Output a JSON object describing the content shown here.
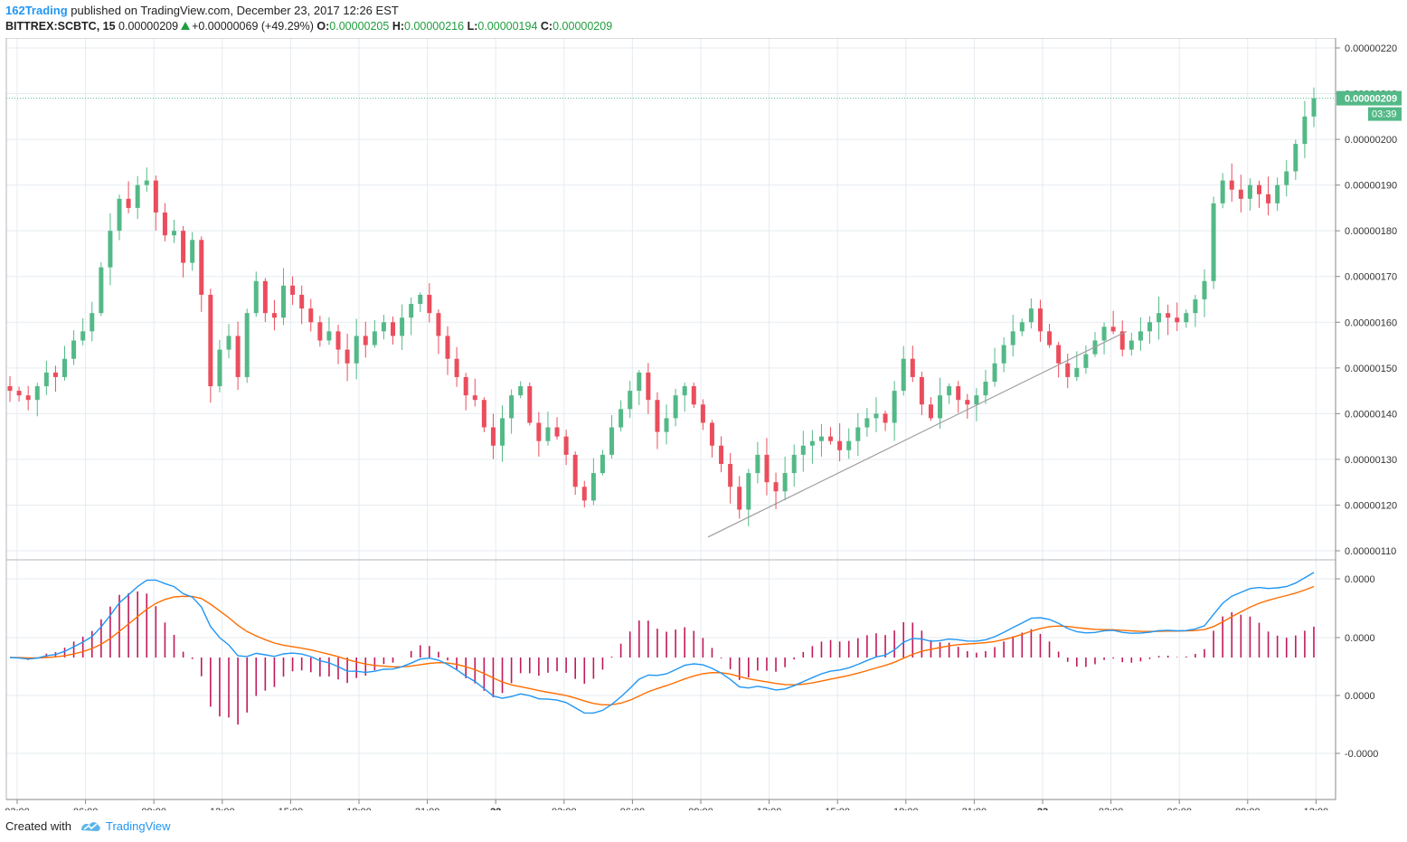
{
  "header": {
    "publisher": "162Trading",
    "published_text": "published on TradingView.com, December 23, 2017 12:26 EST",
    "symbol": "BITTREX:SCBTC, 15",
    "last": "0.00000209",
    "change": "+0.00000069 (+49.29%)",
    "o_label": "O:",
    "o_value": "0.00000205",
    "h_label": "H:",
    "h_value": "0.00000216",
    "l_label": "L:",
    "l_value": "0.00000194",
    "c_label": "C:",
    "c_value": "0.00000209"
  },
  "footer": {
    "created_with": "Created with",
    "brand": "TradingView"
  },
  "colors": {
    "up": "#53b987",
    "down": "#eb4d5c",
    "macd": "#2196f3",
    "signal": "#ff6d00",
    "histogram": "#c2185b",
    "grid": "#e6ebf0",
    "axis_text": "#333333",
    "price_label_bg": "#53b987"
  },
  "chart_data": [
    {
      "type": "candlestick",
      "symbol": "BITTREX:SCBTC",
      "interval": "15",
      "y_ticks": [
        "0.00000110",
        "0.00000120",
        "0.00000130",
        "0.00000140",
        "0.00000150",
        "0.00000160",
        "0.00000170",
        "0.00000180",
        "0.00000190",
        "0.00000200",
        "0.00000210",
        "0.00000220"
      ],
      "ylim": [
        1.1e-06,
        2.2e-06
      ],
      "x_ticks": [
        "03:00",
        "06:00",
        "09:00",
        "12:00",
        "15:00",
        "18:00",
        "21:00",
        "22",
        "03:00",
        "06:00",
        "09:00",
        "12:00",
        "15:00",
        "18:00",
        "21:00",
        "23",
        "03:00",
        "06:00",
        "09:00",
        "12:00"
      ],
      "bold_x_ticks": [
        "22",
        "23"
      ],
      "current_price_label": "0.00000209",
      "countdown_label": "03:39",
      "trendline": {
        "from": [
          "21 09:30",
          1.13e-06
        ],
        "to": [
          "23 05:00",
          1.58e-06
        ]
      },
      "close_series": [
        1.45e-06,
        1.44e-06,
        1.43e-06,
        1.46e-06,
        1.49e-06,
        1.48e-06,
        1.52e-06,
        1.56e-06,
        1.58e-06,
        1.62e-06,
        1.72e-06,
        1.8e-06,
        1.87e-06,
        1.85e-06,
        1.9e-06,
        1.91e-06,
        1.84e-06,
        1.79e-06,
        1.8e-06,
        1.73e-06,
        1.78e-06,
        1.66e-06,
        1.46e-06,
        1.54e-06,
        1.57e-06,
        1.48e-06,
        1.62e-06,
        1.69e-06,
        1.62e-06,
        1.61e-06,
        1.68e-06,
        1.66e-06,
        1.63e-06,
        1.6e-06,
        1.56e-06,
        1.58e-06,
        1.54e-06,
        1.51e-06,
        1.57e-06,
        1.55e-06,
        1.58e-06,
        1.6e-06,
        1.57e-06,
        1.61e-06,
        1.64e-06,
        1.66e-06,
        1.62e-06,
        1.57e-06,
        1.52e-06,
        1.48e-06,
        1.44e-06,
        1.43e-06,
        1.37e-06,
        1.33e-06,
        1.39e-06,
        1.44e-06,
        1.46e-06,
        1.38e-06,
        1.34e-06,
        1.37e-06,
        1.35e-06,
        1.31e-06,
        1.24e-06,
        1.21e-06,
        1.27e-06,
        1.31e-06,
        1.37e-06,
        1.41e-06,
        1.45e-06,
        1.49e-06,
        1.43e-06,
        1.36e-06,
        1.39e-06,
        1.44e-06,
        1.46e-06,
        1.42e-06,
        1.38e-06,
        1.33e-06,
        1.29e-06,
        1.24e-06,
        1.19e-06,
        1.27e-06,
        1.31e-06,
        1.25e-06,
        1.23e-06,
        1.27e-06,
        1.31e-06,
        1.33e-06,
        1.34e-06,
        1.35e-06,
        1.34e-06,
        1.32e-06,
        1.34e-06,
        1.37e-06,
        1.39e-06,
        1.4e-06,
        1.38e-06,
        1.45e-06,
        1.52e-06,
        1.48e-06,
        1.42e-06,
        1.39e-06,
        1.44e-06,
        1.46e-06,
        1.43e-06,
        1.42e-06,
        1.44e-06,
        1.47e-06,
        1.51e-06,
        1.55e-06,
        1.58e-06,
        1.6e-06,
        1.63e-06,
        1.58e-06,
        1.55e-06,
        1.51e-06,
        1.48e-06,
        1.5e-06,
        1.53e-06,
        1.56e-06,
        1.59e-06,
        1.58e-06,
        1.54e-06,
        1.56e-06,
        1.58e-06,
        1.6e-06,
        1.62e-06,
        1.61e-06,
        1.6e-06,
        1.62e-06,
        1.65e-06,
        1.69e-06,
        1.86e-06,
        1.91e-06,
        1.89e-06,
        1.87e-06,
        1.9e-06,
        1.88e-06,
        1.86e-06,
        1.9e-06,
        1.93e-06,
        1.99e-06,
        2.05e-06,
        2.09e-06
      ]
    },
    {
      "type": "line",
      "indicator": "MACD",
      "series": [],
      "y_ticks": [
        "0.0000",
        "0.0000",
        "0.0000",
        "-0.0000"
      ]
    }
  ]
}
